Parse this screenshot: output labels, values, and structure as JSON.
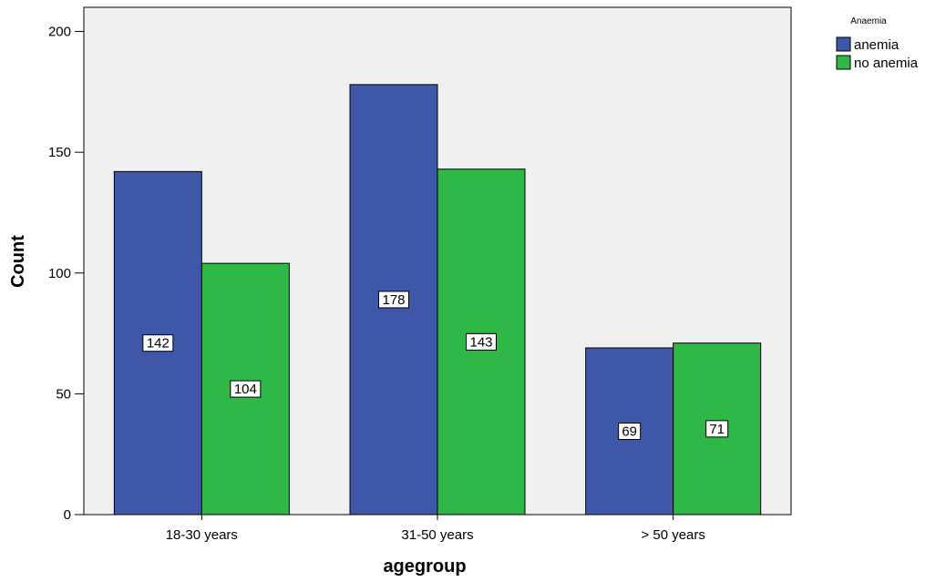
{
  "chart_data": {
    "type": "bar",
    "title": "",
    "xlabel": "agegroup",
    "ylabel": "Count",
    "categories": [
      "18-30 years",
      "31-50 years",
      "> 50 years"
    ],
    "series": [
      {
        "name": "anemia",
        "color": "#3f57a9",
        "values": [
          142,
          178,
          69
        ]
      },
      {
        "name": "no anemia",
        "color": "#2fb748",
        "values": [
          104,
          143,
          71
        ]
      }
    ],
    "ylim": [
      0,
      210
    ],
    "yticks": [
      0,
      50,
      100,
      150,
      200
    ],
    "grid": false,
    "legend": {
      "title": "Anaemia",
      "position": "top-right"
    },
    "plot_background": "#f0f0f0"
  }
}
